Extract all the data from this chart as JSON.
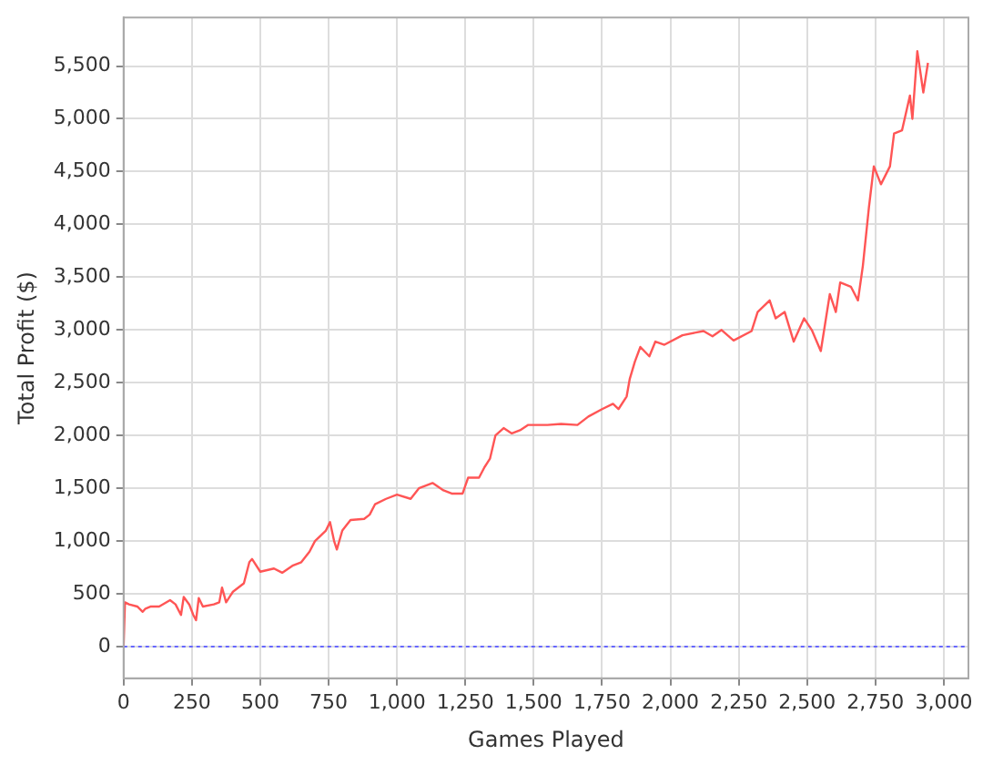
{
  "chart_data": {
    "type": "line",
    "xlabel": "Games Played",
    "ylabel": "Total Profit ($)",
    "xlim": [
      0,
      3090
    ],
    "ylim": [
      -300,
      5960
    ],
    "xticks": [
      {
        "value": 0,
        "label": "0"
      },
      {
        "value": 250,
        "label": "250"
      },
      {
        "value": 500,
        "label": "500"
      },
      {
        "value": 750,
        "label": "750"
      },
      {
        "value": 1000,
        "label": "1,000"
      },
      {
        "value": 1250,
        "label": "1,250"
      },
      {
        "value": 1500,
        "label": "1,500"
      },
      {
        "value": 1750,
        "label": "1,750"
      },
      {
        "value": 2000,
        "label": "2,000"
      },
      {
        "value": 2250,
        "label": "2,250"
      },
      {
        "value": 2500,
        "label": "2,500"
      },
      {
        "value": 2750,
        "label": "2,750"
      },
      {
        "value": 3000,
        "label": "3,000"
      }
    ],
    "yticks": [
      {
        "value": 0,
        "label": "0"
      },
      {
        "value": 500,
        "label": "500"
      },
      {
        "value": 1000,
        "label": "1,000"
      },
      {
        "value": 1500,
        "label": "1,500"
      },
      {
        "value": 2000,
        "label": "2,000"
      },
      {
        "value": 2500,
        "label": "2,500"
      },
      {
        "value": 3000,
        "label": "3,000"
      },
      {
        "value": 3500,
        "label": "3,500"
      },
      {
        "value": 4000,
        "label": "4,000"
      },
      {
        "value": 4500,
        "label": "4,500"
      },
      {
        "value": 5000,
        "label": "5,000"
      },
      {
        "value": 5500,
        "label": "5,500"
      }
    ],
    "grid": true,
    "legend": false,
    "marker": "none",
    "line_style": "solid",
    "ref_lines": [
      {
        "axis": "y",
        "value": 0,
        "color": "#6666ff",
        "line_style": "dotted"
      }
    ],
    "series": [
      {
        "color": "#ff5555",
        "x": [
          0,
          5,
          20,
          50,
          70,
          80,
          100,
          130,
          170,
          190,
          210,
          220,
          240,
          255,
          265,
          275,
          290,
          330,
          350,
          360,
          375,
          400,
          440,
          460,
          470,
          500,
          550,
          580,
          620,
          650,
          680,
          700,
          740,
          755,
          770,
          780,
          800,
          830,
          880,
          900,
          920,
          960,
          1000,
          1050,
          1080,
          1130,
          1170,
          1200,
          1240,
          1260,
          1300,
          1320,
          1340,
          1360,
          1390,
          1420,
          1450,
          1480,
          1550,
          1600,
          1660,
          1700,
          1750,
          1790,
          1810,
          1840,
          1851,
          1870,
          1890,
          1923,
          1945,
          1978,
          2044,
          2121,
          2154,
          2187,
          2231,
          2297,
          2319,
          2363,
          2385,
          2418,
          2451,
          2489,
          2517,
          2550,
          2583,
          2605,
          2621,
          2660,
          2686,
          2704,
          2726,
          2744,
          2770,
          2803,
          2818,
          2847,
          2876,
          2885,
          2903,
          2925,
          2942
        ],
        "values": [
          0,
          420,
          400,
          380,
          330,
          360,
          380,
          380,
          440,
          400,
          300,
          470,
          400,
          300,
          250,
          460,
          380,
          400,
          420,
          560,
          420,
          520,
          600,
          800,
          830,
          710,
          740,
          700,
          770,
          800,
          900,
          1000,
          1100,
          1180,
          1000,
          920,
          1100,
          1200,
          1210,
          1250,
          1350,
          1400,
          1440,
          1400,
          1500,
          1550,
          1480,
          1450,
          1450,
          1600,
          1600,
          1700,
          1780,
          2000,
          2070,
          2020,
          2050,
          2100,
          2100,
          2110,
          2100,
          2180,
          2250,
          2300,
          2250,
          2370,
          2533,
          2700,
          2839,
          2750,
          2890,
          2860,
          2950,
          2990,
          2940,
          3000,
          2900,
          2990,
          3170,
          3280,
          3110,
          3170,
          2890,
          3110,
          3000,
          2800,
          3340,
          3170,
          3450,
          3410,
          3280,
          3610,
          4160,
          4550,
          4380,
          4550,
          4860,
          4890,
          5220,
          5000,
          5640,
          5250,
          5530
        ]
      }
    ]
  }
}
